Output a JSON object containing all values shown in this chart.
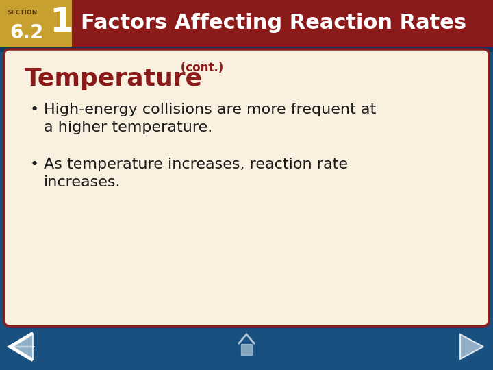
{
  "title": "Factors Affecting Reaction Rates",
  "section_label": "SECTION",
  "section_number": "1",
  "section_sub": "6.2",
  "content_title": "Temperature",
  "content_title_suffix": " (cont.)",
  "bullet1_line1": "High-energy collisions are more frequent at",
  "bullet1_line2": "a higher temperature.",
  "bullet2_line1": "As temperature increases, reaction rate",
  "bullet2_line2": "increases.",
  "header_bg_color": "#8B1A1A",
  "header_text_color": "#FFFFFF",
  "section_bg_color": "#C8A030",
  "nav_bg_color": "#1A5080",
  "content_bg_color": "#FAF0E0",
  "content_border_color": "#8B1A1A",
  "content_title_color": "#8B1A1A",
  "bullet_text_color": "#1A1A1A",
  "nav_stripe_color": "#1A5080"
}
